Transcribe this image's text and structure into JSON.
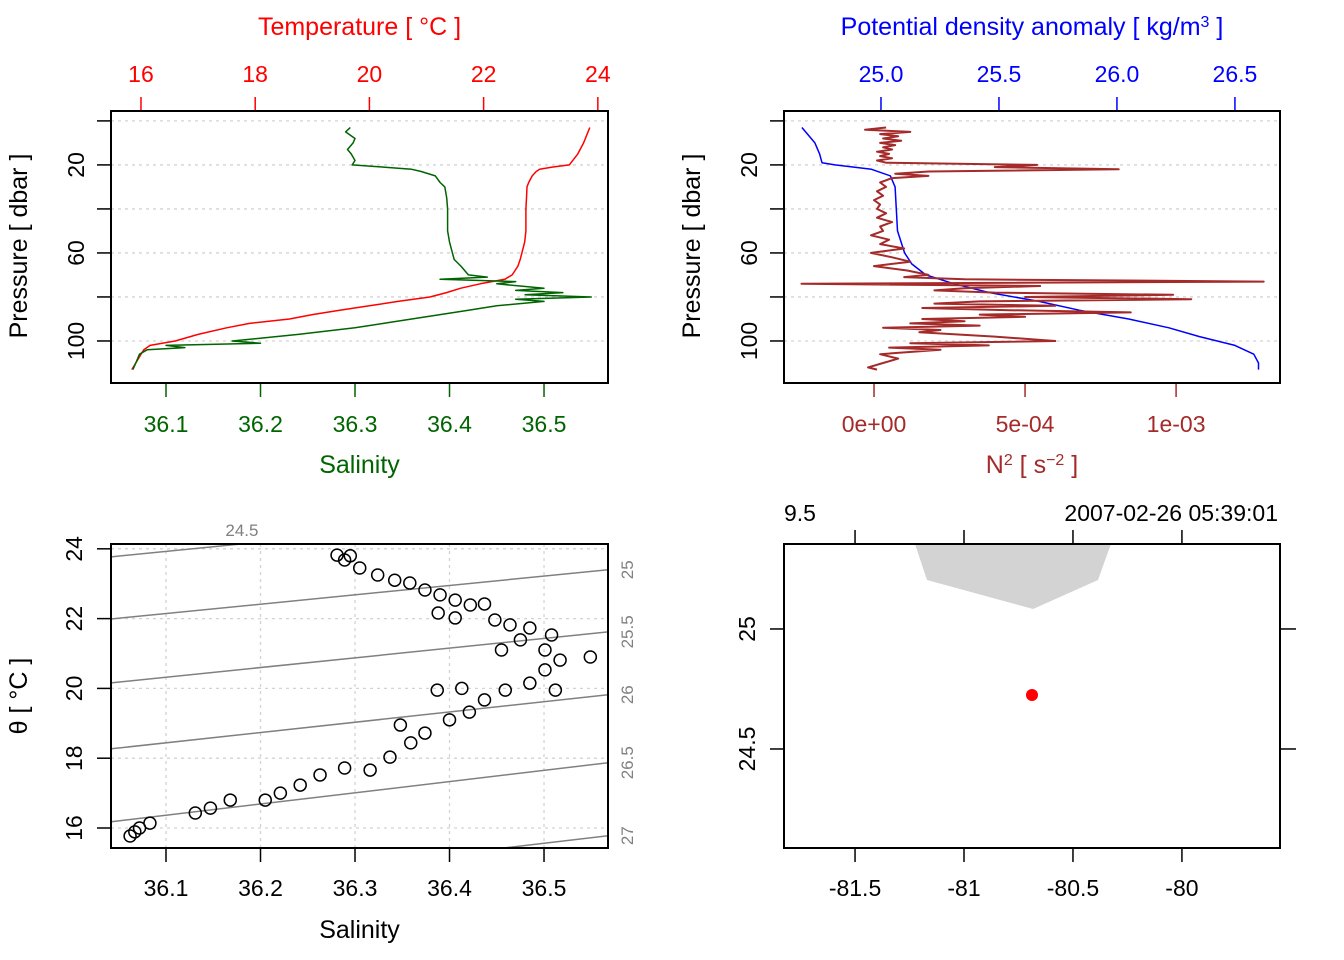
{
  "chart_data": [
    {
      "type": "line",
      "y_axis": {
        "label": "Pressure [ dbar ]",
        "lim": [
          -4.5,
          119.1
        ],
        "reversed": true,
        "ticks": [
          0,
          20,
          40,
          60,
          80,
          100
        ],
        "labeled_ticks": [
          20,
          60,
          100
        ],
        "tick_labels": [
          "20",
          "60",
          "100"
        ],
        "grid": "dotted"
      },
      "x_top": {
        "label_parts": [
          {
            "t": "Temperature [ °C ]"
          }
        ],
        "lim": [
          15.475,
          24.178
        ],
        "ticks": [
          16,
          18,
          20,
          22,
          24
        ],
        "tick_labels": [
          "16",
          "18",
          "20",
          "22",
          "24"
        ],
        "color": "#ff0000"
      },
      "x_bottom": {
        "label_parts": [
          {
            "t": "Salinity"
          }
        ],
        "lim": [
          36.0418,
          36.5677
        ],
        "ticks": [
          36.1,
          36.2,
          36.3,
          36.4,
          36.5
        ],
        "tick_labels": [
          "36.1",
          "36.2",
          "36.3",
          "36.4",
          "36.5"
        ],
        "color": "#006400"
      },
      "series": [
        {
          "axis": "top",
          "color": "#ff0000",
          "pressure": [
            3,
            10,
            15,
            20,
            21,
            22,
            23,
            25,
            28,
            30,
            35,
            40,
            50,
            55,
            60,
            63,
            66,
            70,
            72,
            74,
            76,
            78,
            80,
            82,
            84,
            86,
            88,
            90,
            92,
            94,
            97,
            100,
            102,
            104,
            106,
            110,
            113
          ],
          "values": [
            23.86,
            23.75,
            23.65,
            23.5,
            23.2,
            22.98,
            22.92,
            22.85,
            22.79,
            22.76,
            22.75,
            22.74,
            22.74,
            22.72,
            22.67,
            22.64,
            22.6,
            22.5,
            22.37,
            21.94,
            21.6,
            21.35,
            21.06,
            20.5,
            20.0,
            19.48,
            19.0,
            18.6,
            17.9,
            17.5,
            17.0,
            16.6,
            16.16,
            16.05,
            16.0,
            15.91,
            15.84
          ]
        },
        {
          "axis": "bottom",
          "color": "#006400",
          "pressure": [
            3,
            5,
            8,
            10,
            13,
            15,
            18,
            20,
            21,
            22,
            23,
            25,
            28,
            30,
            35,
            40,
            50,
            55,
            60,
            63,
            66,
            70,
            71,
            72,
            73,
            74,
            76,
            77,
            78,
            79,
            80,
            81,
            82,
            84,
            86,
            88,
            90,
            92,
            94,
            97,
            100,
            101,
            102,
            103,
            104,
            106,
            110,
            113
          ],
          "values": [
            36.295,
            36.29,
            36.3,
            36.298,
            36.292,
            36.296,
            36.3,
            36.297,
            36.33,
            36.36,
            36.37,
            36.385,
            36.39,
            36.395,
            36.397,
            36.398,
            36.398,
            36.4,
            36.403,
            36.405,
            36.412,
            36.42,
            36.44,
            36.39,
            36.47,
            36.45,
            36.5,
            36.47,
            36.52,
            36.48,
            36.55,
            36.47,
            36.5,
            36.45,
            36.42,
            36.39,
            36.36,
            36.33,
            36.3,
            36.24,
            36.17,
            36.2,
            36.1,
            36.12,
            36.08,
            36.072,
            36.068,
            36.065
          ]
        }
      ]
    },
    {
      "type": "line",
      "y_axis": {
        "label": "Pressure [ dbar ]",
        "lim": [
          -4.5,
          119.1
        ],
        "reversed": true,
        "ticks": [
          0,
          20,
          40,
          60,
          80,
          100
        ],
        "labeled_ticks": [
          20,
          60,
          100
        ],
        "tick_labels": [
          "20",
          "60",
          "100"
        ],
        "grid": "dotted"
      },
      "x_top": {
        "label_parts": [
          {
            "t": "Potential density anomaly [ kg/m"
          },
          {
            "t": "3",
            "sup": true
          },
          {
            "t": " ]"
          }
        ],
        "lim": [
          24.589,
          26.691
        ],
        "ticks": [
          25.0,
          25.5,
          26.0,
          26.5
        ],
        "tick_labels": [
          "25.0",
          "25.5",
          "26.0",
          "26.5"
        ],
        "color": "#0000ff"
      },
      "x_bottom": {
        "label_parts": [
          {
            "t": "N"
          },
          {
            "t": "2",
            "sup": true
          },
          {
            "t": " [ s"
          },
          {
            "t": "−2",
            "sup": true
          },
          {
            "t": " ]"
          }
        ],
        "lim": [
          -0.000298,
          0.001344
        ],
        "ticks": [
          0,
          0.0005,
          0.001
        ],
        "tick_labels": [
          "0e+00",
          "5e-04",
          "1e-03"
        ],
        "color": "#a52a2a"
      },
      "series": [
        {
          "axis": "top",
          "color": "#0000ff",
          "pressure": [
            3,
            10,
            15,
            19,
            20,
            22,
            25,
            30,
            40,
            50,
            60,
            65,
            70,
            74,
            78,
            82,
            86,
            90,
            94,
            98,
            102,
            106,
            110,
            113
          ],
          "values": [
            24.665,
            24.72,
            24.74,
            24.75,
            24.805,
            24.96,
            25.04,
            25.06,
            25.065,
            25.07,
            25.1,
            25.13,
            25.19,
            25.31,
            25.46,
            25.67,
            25.84,
            26.05,
            26.22,
            26.35,
            26.5,
            26.58,
            26.6,
            26.6
          ]
        },
        {
          "axis": "bottom",
          "color": "#a52a2a",
          "pressure": [
            3,
            4,
            5,
            6,
            7,
            8,
            9,
            10,
            11,
            12,
            13,
            14,
            15,
            16,
            17,
            18,
            19,
            20,
            21,
            22,
            23,
            24,
            25,
            26,
            28,
            30,
            32,
            34,
            36,
            38,
            40,
            42,
            44,
            46,
            48,
            50,
            52,
            54,
            56,
            58,
            60,
            62,
            64,
            66,
            68,
            70,
            71,
            72,
            73,
            74,
            75,
            76,
            77,
            78,
            79,
            80,
            81,
            82,
            83,
            84,
            85,
            86,
            87,
            88,
            89,
            90,
            91,
            92,
            93,
            94,
            95,
            96,
            98,
            100,
            101,
            102,
            103,
            104,
            106,
            108,
            110,
            112,
            113
          ],
          "values": [
            4e-05,
            -3e-05,
            0.00012,
            2e-05,
            8e-05,
            3e-05,
            9e-05,
            2e-05,
            7e-05,
            3e-05,
            6e-05,
            1e-05,
            5e-05,
            2e-05,
            6e-05,
            1e-05,
            4e-05,
            0.00054,
            0.0004,
            0.00081,
            0.00018,
            7e-05,
            0.00018,
            6e-05,
            2e-05,
            4e-05,
            1e-05,
            3e-05,
            0,
            2e-05,
            1e-05,
            4e-05,
            1e-05,
            6e-05,
            2e-05,
            3e-05,
            -1e-05,
            5e-05,
            2e-05,
            0.0001,
            -1e-05,
            6e-05,
            0.00012,
            0,
            0.00011,
            0.00018,
            0.0001,
            0.0003,
            0.00129,
            -0.00024,
            0.00055,
            0.0003,
            0.0002,
            0.0004,
            0.00099,
            0.0005,
            0.00105,
            0.00035,
            0.0002,
            0.0006,
            0.00016,
            0.00045,
            0.00085,
            0.00035,
            0.0005,
            0.00016,
            0.0003,
            0.00012,
            0.00035,
            3e-05,
            0.00022,
            0.00015,
            0.0004,
            0.0006,
            0.00012,
            0.00038,
            5e-05,
            0.00022,
            2e-05,
            8e-05,
            3e-05,
            -2e-05,
            1e-05
          ]
        }
      ]
    },
    {
      "type": "scatter",
      "x_axis": {
        "label": "Salinity",
        "lim": [
          36.0418,
          36.5677
        ],
        "ticks": [
          36.1,
          36.2,
          36.3,
          36.4,
          36.5
        ],
        "tick_labels": [
          "36.1",
          "36.2",
          "36.3",
          "36.4",
          "36.5"
        ]
      },
      "y_axis": {
        "label": "θ [ °C ]",
        "lim": [
          15.427,
          24.138
        ],
        "ticks": [
          16,
          18,
          20,
          22,
          24
        ],
        "tick_labels": [
          "16",
          "18",
          "20",
          "22",
          "24"
        ]
      },
      "grid": true,
      "contour_color": "#808080",
      "density_contours": [
        {
          "label": "24.5",
          "s": [
            36.042,
            36.568
          ],
          "theta": [
            23.77,
            25.18
          ]
        },
        {
          "label": "25",
          "s": [
            36.042,
            36.568
          ],
          "theta": [
            21.99,
            23.4
          ]
        },
        {
          "label": "25.5",
          "s": [
            36.042,
            36.568
          ],
          "theta": [
            20.16,
            21.62
          ]
        },
        {
          "label": "26",
          "s": [
            36.042,
            36.568
          ],
          "theta": [
            18.27,
            19.82
          ]
        },
        {
          "label": "26.5",
          "s": [
            36.042,
            36.568
          ],
          "theta": [
            16.18,
            17.87
          ]
        },
        {
          "label": "27",
          "s": [
            36.042,
            36.568
          ],
          "theta": [
            14.1,
            15.78
          ]
        }
      ],
      "points": [
        [
          36.281,
          23.82
        ],
        [
          36.289,
          23.68
        ],
        [
          36.295,
          23.8
        ],
        [
          36.305,
          23.45
        ],
        [
          36.324,
          23.25
        ],
        [
          36.342,
          23.1
        ],
        [
          36.358,
          23.02
        ],
        [
          36.374,
          22.82
        ],
        [
          36.39,
          22.68
        ],
        [
          36.406,
          22.53
        ],
        [
          36.422,
          22.39
        ],
        [
          36.437,
          22.42
        ],
        [
          36.388,
          22.16
        ],
        [
          36.406,
          22.02
        ],
        [
          36.448,
          21.96
        ],
        [
          36.464,
          21.82
        ],
        [
          36.485,
          21.73
        ],
        [
          36.508,
          21.53
        ],
        [
          36.475,
          21.39
        ],
        [
          36.455,
          21.1
        ],
        [
          36.501,
          21.1
        ],
        [
          36.517,
          20.81
        ],
        [
          36.549,
          20.9
        ],
        [
          36.501,
          20.53
        ],
        [
          36.485,
          20.15
        ],
        [
          36.512,
          19.95
        ],
        [
          36.459,
          19.95
        ],
        [
          36.437,
          19.67
        ],
        [
          36.413,
          20.0
        ],
        [
          36.387,
          19.95
        ],
        [
          36.421,
          19.32
        ],
        [
          36.4,
          19.1
        ],
        [
          36.374,
          18.72
        ],
        [
          36.348,
          18.95
        ],
        [
          36.359,
          18.44
        ],
        [
          36.337,
          18.03
        ],
        [
          36.316,
          17.66
        ],
        [
          36.289,
          17.72
        ],
        [
          36.263,
          17.52
        ],
        [
          36.242,
          17.23
        ],
        [
          36.221,
          17.0
        ],
        [
          36.205,
          16.8
        ],
        [
          36.168,
          16.8
        ],
        [
          36.147,
          16.57
        ],
        [
          36.131,
          16.43
        ],
        [
          36.083,
          16.14
        ],
        [
          36.072,
          16.0
        ],
        [
          36.067,
          15.89
        ],
        [
          36.062,
          15.77
        ]
      ]
    },
    {
      "type": "scatter",
      "x_axis": {
        "lim": [
          -81.826,
          -79.55
        ],
        "ticks": [
          -81.5,
          -81,
          -80.5,
          -80
        ],
        "tick_labels": [
          "-81.5",
          "-81",
          "-80.5",
          "-80"
        ]
      },
      "y_axis": {
        "lim": [
          24.0875,
          25.354
        ],
        "ticks": [
          25,
          24.5
        ],
        "tick_labels": [
          "25",
          "24.5"
        ]
      },
      "top_left_text": "9.5",
      "top_right_text": "2007-02-26 05:39:01",
      "land_color": "#d3d3d3",
      "station_color": "#ff0000",
      "coastline": [
        [
          -81.225,
          25.354
        ],
        [
          -81.17,
          25.204
        ],
        [
          -80.683,
          25.083
        ],
        [
          -80.385,
          25.204
        ],
        [
          -80.326,
          25.354
        ]
      ],
      "station": {
        "lon": -80.688,
        "lat": 24.725
      }
    }
  ]
}
